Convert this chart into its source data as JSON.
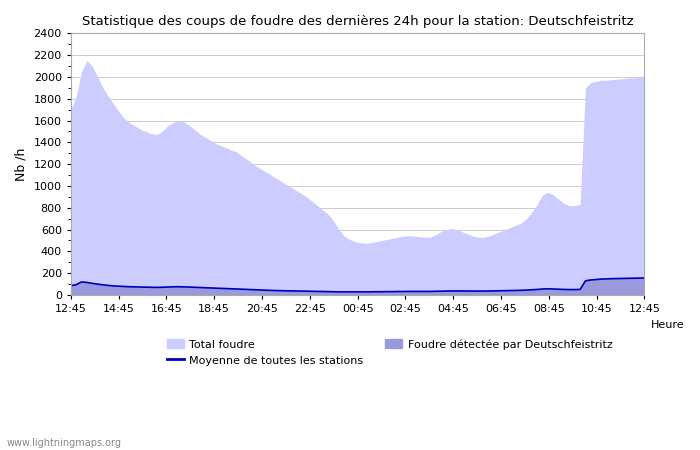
{
  "title": "Statistique des coups de foudre des dernières 24h pour la station: Deutschfeistritz",
  "ylabel": "Nb /h",
  "xlabel": "Heure",
  "watermark": "www.lightningmaps.org",
  "ylim": [
    0,
    2400
  ],
  "yticks": [
    0,
    200,
    400,
    600,
    800,
    1000,
    1200,
    1400,
    1600,
    1800,
    2000,
    2200,
    2400
  ],
  "xtick_labels": [
    "12:45",
    "14:45",
    "16:45",
    "18:45",
    "20:45",
    "22:45",
    "00:45",
    "02:45",
    "04:45",
    "06:45",
    "08:45",
    "10:45",
    "12:45"
  ],
  "color_total": "#ccccff",
  "color_local": "#9999dd",
  "color_mean": "#0000bb",
  "background": "#ffffff",
  "grid_color": "#cccccc",
  "total_foudre": [
    1700,
    1820,
    2050,
    2150,
    2100,
    2000,
    1900,
    1820,
    1750,
    1680,
    1620,
    1580,
    1550,
    1520,
    1500,
    1480,
    1470,
    1500,
    1550,
    1580,
    1600,
    1590,
    1560,
    1520,
    1480,
    1450,
    1420,
    1390,
    1370,
    1350,
    1330,
    1310,
    1270,
    1240,
    1200,
    1170,
    1140,
    1110,
    1080,
    1050,
    1020,
    990,
    960,
    930,
    900,
    860,
    820,
    780,
    740,
    680,
    600,
    540,
    510,
    490,
    480,
    475,
    480,
    490,
    500,
    510,
    520,
    530,
    540,
    545,
    540,
    535,
    530,
    530,
    550,
    580,
    600,
    610,
    600,
    580,
    560,
    540,
    530,
    530,
    540,
    560,
    580,
    600,
    620,
    640,
    660,
    700,
    760,
    830,
    920,
    940,
    920,
    880,
    840,
    820,
    820,
    830,
    1900,
    1950,
    1960,
    1970,
    1970,
    1975,
    1980,
    1985,
    1990,
    1990,
    1995,
    2000
  ],
  "local_foudre": [
    90,
    100,
    130,
    125,
    115,
    108,
    100,
    95,
    90,
    88,
    85,
    83,
    82,
    80,
    79,
    78,
    77,
    78,
    80,
    82,
    83,
    82,
    80,
    78,
    76,
    74,
    72,
    70,
    68,
    66,
    64,
    62,
    60,
    58,
    56,
    54,
    52,
    50,
    48,
    47,
    46,
    45,
    44,
    43,
    42,
    41,
    40,
    39,
    38,
    37,
    36,
    36,
    36,
    36,
    36,
    36,
    36,
    37,
    37,
    38,
    38,
    39,
    39,
    40,
    40,
    40,
    40,
    40,
    41,
    42,
    43,
    44,
    44,
    44,
    44,
    43,
    43,
    43,
    44,
    45,
    46,
    47,
    48,
    49,
    50,
    52,
    55,
    58,
    62,
    64,
    62,
    60,
    58,
    57,
    57,
    58,
    140,
    148,
    152,
    156,
    158,
    160,
    161,
    162,
    163,
    164,
    165,
    166
  ],
  "mean_line": [
    85,
    95,
    120,
    115,
    107,
    100,
    93,
    88,
    83,
    81,
    78,
    76,
    75,
    73,
    72,
    71,
    70,
    71,
    73,
    75,
    76,
    75,
    73,
    71,
    69,
    67,
    65,
    63,
    61,
    59,
    57,
    55,
    53,
    51,
    49,
    47,
    45,
    43,
    41,
    40,
    39,
    38,
    37,
    36,
    35,
    34,
    33,
    32,
    31,
    30,
    29,
    29,
    29,
    29,
    29,
    29,
    29,
    30,
    30,
    31,
    31,
    32,
    32,
    33,
    33,
    33,
    33,
    33,
    34,
    35,
    36,
    37,
    37,
    37,
    37,
    36,
    36,
    36,
    37,
    38,
    39,
    40,
    41,
    42,
    43,
    45,
    48,
    51,
    55,
    57,
    55,
    53,
    51,
    50,
    50,
    51,
    130,
    138,
    142,
    146,
    148,
    150,
    151,
    152,
    153,
    154,
    155,
    156
  ],
  "legend_total": "Total foudre",
  "legend_mean": "Moyenne de toutes les stations",
  "legend_local": "Foudre détectée par Deutschfeistritz"
}
